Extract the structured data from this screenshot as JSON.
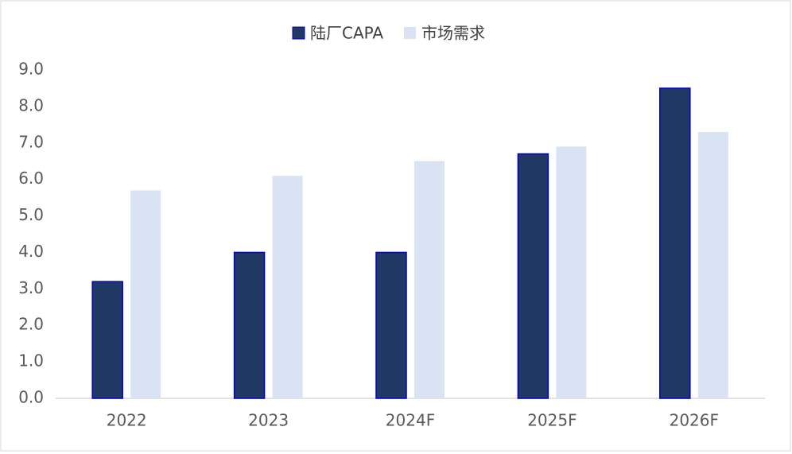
{
  "chart_data": {
    "type": "bar",
    "categories": [
      "2022",
      "2023",
      "2024F",
      "2025F",
      "2026F"
    ],
    "series": [
      {
        "name": "陆厂CAPA",
        "color": "#1f3864",
        "values": [
          3.2,
          4.0,
          4.0,
          6.7,
          8.5
        ]
      },
      {
        "name": "市场需求",
        "color": "#dae3f3",
        "values": [
          5.7,
          6.1,
          6.5,
          6.9,
          7.3
        ]
      }
    ],
    "ylim": [
      0,
      9
    ],
    "yticks": [
      {
        "value": 0,
        "label": "0.0"
      },
      {
        "value": 1,
        "label": "1.0"
      },
      {
        "value": 2,
        "label": "2.0"
      },
      {
        "value": 3,
        "label": "3.0"
      },
      {
        "value": 4,
        "label": "4.0"
      },
      {
        "value": 5,
        "label": "5.0"
      },
      {
        "value": 6,
        "label": "6.0"
      },
      {
        "value": 7,
        "label": "7.0"
      },
      {
        "value": 8,
        "label": "8.0"
      },
      {
        "value": 9,
        "label": "9.0"
      }
    ],
    "grid": false,
    "legend": "top"
  }
}
